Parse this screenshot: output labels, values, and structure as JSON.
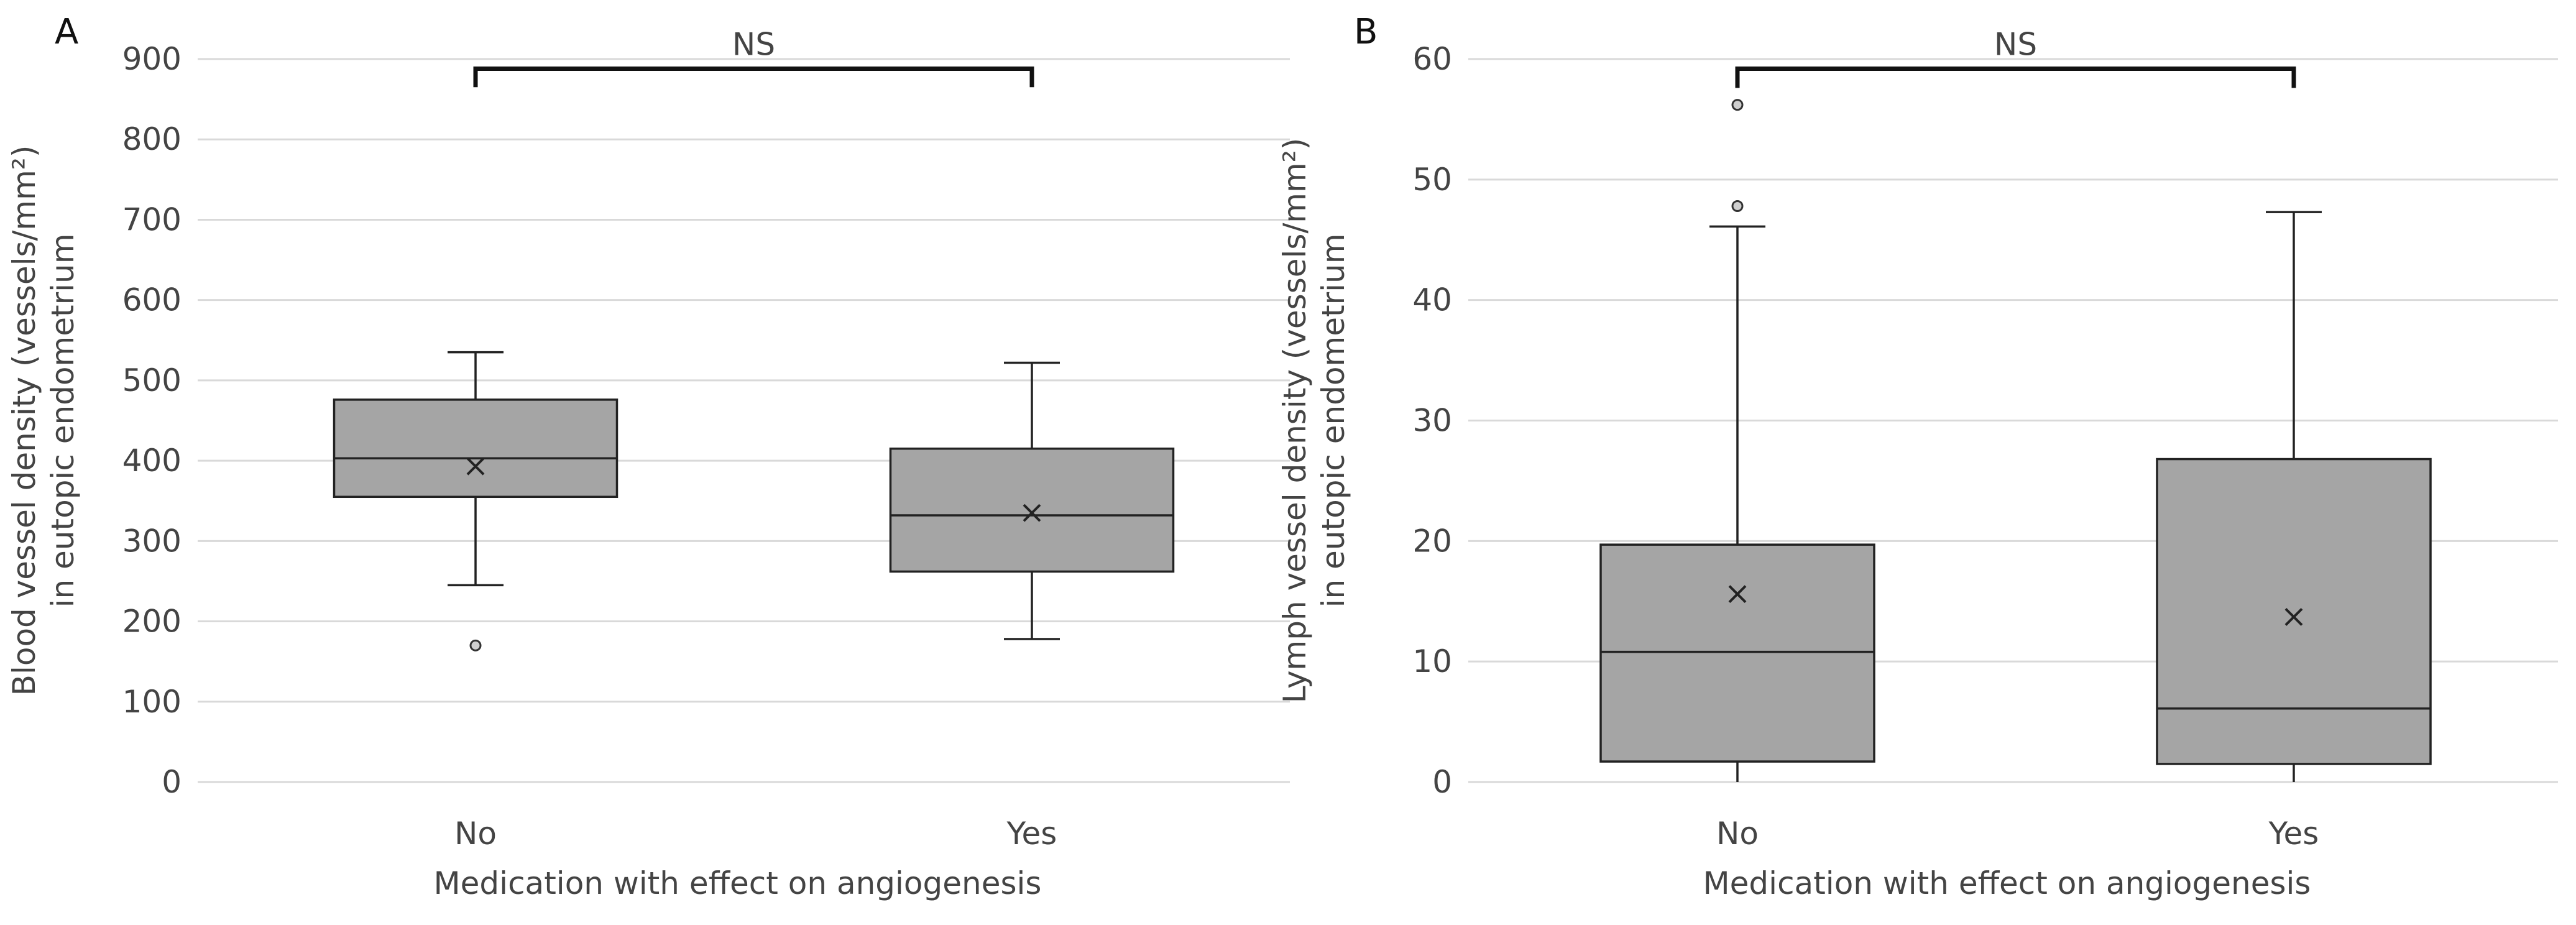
{
  "chart_data": [
    {
      "type": "box",
      "panel": "A",
      "categories": [
        "No",
        "Yes"
      ],
      "xlabel": "Medication with effect on angiogenesis",
      "ylabel_line1": "Blood vessel density (vessels/mm²)",
      "ylabel_line2": "in eutopic endometrium",
      "ylim": [
        0,
        900
      ],
      "yticks": [
        0,
        100,
        200,
        300,
        400,
        500,
        600,
        700,
        800,
        900
      ],
      "grid": true,
      "boxes": [
        {
          "category": "No",
          "whisker_low": 245,
          "q1": 355,
          "median": 403,
          "q3": 476,
          "whisker_high": 535,
          "mean": 393,
          "outliers": [
            170
          ]
        },
        {
          "category": "Yes",
          "whisker_low": 178,
          "q1": 262,
          "median": 332,
          "q3": 415,
          "whisker_high": 522,
          "mean": 335,
          "outliers": []
        }
      ],
      "significance": {
        "label": "NS",
        "from": "No",
        "to": "Yes",
        "y": 888,
        "tick_bottom": 865
      }
    },
    {
      "type": "box",
      "panel": "B",
      "categories": [
        "No",
        "Yes"
      ],
      "xlabel": "Medication with effect on angiogenesis",
      "ylabel_line1": "Lymph vessel density (vessels/mm²)",
      "ylabel_line2": "in eutopic endometrium",
      "ylim": [
        0,
        60
      ],
      "yticks": [
        0,
        10,
        20,
        30,
        40,
        50,
        60
      ],
      "grid": true,
      "boxes": [
        {
          "category": "No",
          "whisker_low": 0,
          "q1": 1.7,
          "median": 10.8,
          "q3": 19.7,
          "whisker_high": 46.1,
          "mean": 15.6,
          "outliers": [
            47.8,
            56.2
          ]
        },
        {
          "category": "Yes",
          "whisker_low": 0,
          "q1": 1.5,
          "median": 6.1,
          "q3": 26.8,
          "whisker_high": 47.3,
          "mean": 13.7,
          "outliers": []
        }
      ],
      "significance": {
        "label": "NS",
        "from": "No",
        "to": "Yes",
        "y": 59.2,
        "tick_bottom": 57.6
      }
    }
  ]
}
